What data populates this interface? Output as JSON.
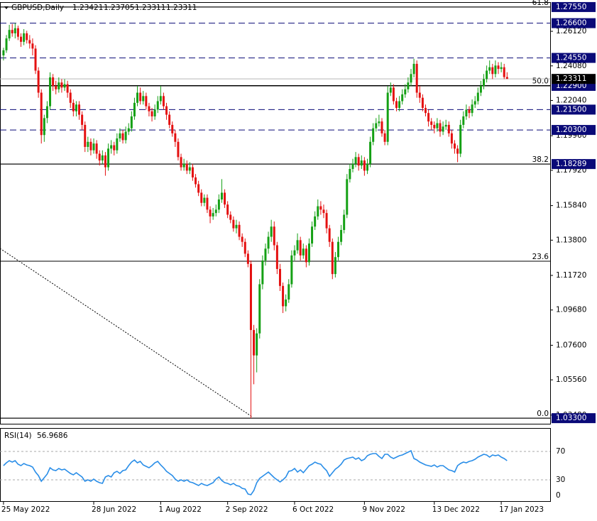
{
  "chart_data": {
    "type": "candlestick",
    "symbol": "GBPUSD,Daily",
    "bull_color": "#14a014",
    "bear_color": "#e41010",
    "xlim": [
      -1.2,
      187.8
    ],
    "xticks": [
      {
        "value": 0,
        "label": "25 May 2022"
      },
      {
        "value": 31,
        "label": "28 Jun 2022"
      },
      {
        "value": 54,
        "label": "1 Aug 2022"
      },
      {
        "value": 77,
        "label": "2 Sep 2022"
      },
      {
        "value": 100,
        "label": "6 Oct 2022"
      },
      {
        "value": 124,
        "label": "9 Nov 2022"
      },
      {
        "value": 148,
        "label": "13 Dec 2022"
      },
      {
        "value": 171,
        "label": "17 Jan 2023"
      }
    ],
    "ylim": [
      1.0297,
      1.2784
    ],
    "yticks": [
      {
        "value": 1.2612,
        "label": "1.26120"
      },
      {
        "value": 1.2408,
        "label": "1.24080"
      },
      {
        "value": 1.2204,
        "label": "1.22040"
      },
      {
        "value": 1.1996,
        "label": "1.19960"
      },
      {
        "value": 1.1792,
        "label": "1.17920"
      },
      {
        "value": 1.1584,
        "label": "1.15840"
      },
      {
        "value": 1.138,
        "label": "1.13800"
      },
      {
        "value": 1.1172,
        "label": "1.11720"
      },
      {
        "value": 1.0968,
        "label": "1.09680"
      },
      {
        "value": 1.076,
        "label": "1.07600"
      },
      {
        "value": 1.0556,
        "label": "1.05560"
      },
      {
        "value": 1.0348,
        "label": "1.03480"
      }
    ],
    "fib_levels": [
      {
        "value": 1.2755,
        "label": "61.8"
      },
      {
        "value": 1.2292,
        "label": "50.0"
      },
      {
        "value": 1.1829,
        "label": "38.2"
      },
      {
        "value": 1.1256,
        "label": "23.6"
      },
      {
        "value": 1.033,
        "label": "0.0"
      }
    ],
    "level_color": "#0a0a78",
    "levels": [
      {
        "value": 1.2755,
        "label": "1.27550",
        "style": "solid"
      },
      {
        "value": 1.266,
        "label": "1.26600",
        "style": "dashed"
      },
      {
        "value": 1.2455,
        "label": "1.24550",
        "style": "dashed"
      },
      {
        "value": 1.229,
        "label": "1.22900",
        "style": "solid"
      },
      {
        "value": 1.215,
        "label": "1.21500",
        "style": "dashed"
      },
      {
        "value": 1.203,
        "label": "1.20300",
        "style": "dashed"
      },
      {
        "value": 1.18289,
        "label": "1.18289",
        "style": "solid"
      },
      {
        "value": 1.033,
        "label": "1.03300",
        "style": "solid"
      }
    ],
    "last_price": {
      "value": 1.23311,
      "label": "1.23311"
    },
    "candles": [
      [
        1.247,
        1.2515,
        1.244,
        1.25
      ],
      [
        1.25,
        1.259,
        1.2485,
        1.257
      ],
      [
        1.257,
        1.265,
        1.2555,
        1.262
      ],
      [
        1.262,
        1.2655,
        1.258,
        1.26
      ],
      [
        1.26,
        1.266,
        1.257,
        1.263
      ],
      [
        1.263,
        1.2645,
        1.256,
        1.258
      ],
      [
        1.258,
        1.26,
        1.252,
        1.255
      ],
      [
        1.255,
        1.2625,
        1.253,
        1.26
      ],
      [
        1.26,
        1.2615,
        1.254,
        1.256
      ],
      [
        1.256,
        1.259,
        1.251,
        1.254
      ],
      [
        1.254,
        1.257,
        1.247,
        1.251
      ],
      [
        1.251,
        1.253,
        1.236,
        1.238
      ],
      [
        1.238,
        1.24,
        1.222,
        1.225
      ],
      [
        1.225,
        1.227,
        1.195,
        1.2
      ],
      [
        1.2,
        1.212,
        1.196,
        1.21
      ],
      [
        1.21,
        1.22,
        1.207,
        1.217
      ],
      [
        1.217,
        1.237,
        1.215,
        1.234
      ],
      [
        1.234,
        1.236,
        1.226,
        1.229
      ],
      [
        1.229,
        1.232,
        1.224,
        1.227
      ],
      [
        1.227,
        1.234,
        1.225,
        1.231
      ],
      [
        1.231,
        1.233,
        1.225,
        1.228
      ],
      [
        1.228,
        1.233,
        1.226,
        1.23
      ],
      [
        1.23,
        1.232,
        1.222,
        1.225
      ],
      [
        1.225,
        1.227,
        1.216,
        1.219
      ],
      [
        1.219,
        1.221,
        1.211,
        1.214
      ],
      [
        1.214,
        1.22,
        1.211,
        1.218
      ],
      [
        1.218,
        1.22,
        1.209,
        1.212
      ],
      [
        1.212,
        1.214,
        1.203,
        1.206
      ],
      [
        1.206,
        1.208,
        1.19,
        1.193
      ],
      [
        1.193,
        1.199,
        1.19,
        1.196
      ],
      [
        1.196,
        1.198,
        1.188,
        1.191
      ],
      [
        1.191,
        1.198,
        1.189,
        1.195
      ],
      [
        1.195,
        1.197,
        1.186,
        1.189
      ],
      [
        1.189,
        1.191,
        1.182,
        1.185
      ],
      [
        1.185,
        1.191,
        1.183,
        1.188
      ],
      [
        1.188,
        1.19,
        1.176,
        1.181
      ],
      [
        1.181,
        1.195,
        1.179,
        1.192
      ],
      [
        1.192,
        1.197,
        1.189,
        1.194
      ],
      [
        1.194,
        1.196,
        1.188,
        1.191
      ],
      [
        1.191,
        1.201,
        1.189,
        1.198
      ],
      [
        1.198,
        1.204,
        1.196,
        1.201
      ],
      [
        1.201,
        1.203,
        1.195,
        1.197
      ],
      [
        1.197,
        1.205,
        1.195,
        1.202
      ],
      [
        1.202,
        1.207,
        1.2,
        1.204
      ],
      [
        1.204,
        1.214,
        1.202,
        1.211
      ],
      [
        1.211,
        1.222,
        1.209,
        1.219
      ],
      [
        1.219,
        1.229,
        1.217,
        1.225
      ],
      [
        1.225,
        1.228,
        1.218,
        1.22
      ],
      [
        1.22,
        1.226,
        1.218,
        1.223
      ],
      [
        1.223,
        1.225,
        1.215,
        1.217
      ],
      [
        1.217,
        1.219,
        1.211,
        1.214
      ],
      [
        1.214,
        1.216,
        1.208,
        1.211
      ],
      [
        1.211,
        1.218,
        1.209,
        1.215
      ],
      [
        1.215,
        1.223,
        1.213,
        1.22
      ],
      [
        1.22,
        1.229,
        1.218,
        1.223
      ],
      [
        1.223,
        1.225,
        1.215,
        1.217
      ],
      [
        1.217,
        1.219,
        1.209,
        1.212
      ],
      [
        1.212,
        1.214,
        1.204,
        1.206
      ],
      [
        1.206,
        1.208,
        1.199,
        1.201
      ],
      [
        1.201,
        1.203,
        1.193,
        1.196
      ],
      [
        1.196,
        1.198,
        1.185,
        1.187
      ],
      [
        1.187,
        1.189,
        1.179,
        1.181
      ],
      [
        1.181,
        1.186,
        1.179,
        1.183
      ],
      [
        1.183,
        1.185,
        1.177,
        1.179
      ],
      [
        1.179,
        1.184,
        1.177,
        1.181
      ],
      [
        1.181,
        1.183,
        1.173,
        1.175
      ],
      [
        1.175,
        1.177,
        1.169,
        1.171
      ],
      [
        1.171,
        1.173,
        1.164,
        1.166
      ],
      [
        1.166,
        1.168,
        1.158,
        1.16
      ],
      [
        1.16,
        1.165,
        1.158,
        1.163
      ],
      [
        1.163,
        1.165,
        1.154,
        1.156
      ],
      [
        1.156,
        1.158,
        1.148,
        1.152
      ],
      [
        1.152,
        1.157,
        1.15,
        1.154
      ],
      [
        1.154,
        1.159,
        1.152,
        1.156
      ],
      [
        1.156,
        1.165,
        1.154,
        1.162
      ],
      [
        1.162,
        1.174,
        1.16,
        1.166
      ],
      [
        1.166,
        1.168,
        1.157,
        1.159
      ],
      [
        1.159,
        1.161,
        1.151,
        1.153
      ],
      [
        1.153,
        1.155,
        1.148,
        1.15
      ],
      [
        1.15,
        1.152,
        1.143,
        1.145
      ],
      [
        1.145,
        1.15,
        1.142,
        1.147
      ],
      [
        1.147,
        1.149,
        1.138,
        1.14
      ],
      [
        1.14,
        1.142,
        1.134,
        1.137
      ],
      [
        1.137,
        1.139,
        1.128,
        1.13
      ],
      [
        1.13,
        1.132,
        1.122,
        1.124
      ],
      [
        1.124,
        1.126,
        1.033,
        1.085
      ],
      [
        1.085,
        1.088,
        1.053,
        1.07
      ],
      [
        1.07,
        1.086,
        1.06,
        1.083
      ],
      [
        1.083,
        1.115,
        1.08,
        1.112
      ],
      [
        1.112,
        1.129,
        1.109,
        1.126
      ],
      [
        1.126,
        1.136,
        1.123,
        1.133
      ],
      [
        1.133,
        1.143,
        1.13,
        1.14
      ],
      [
        1.14,
        1.15,
        1.137,
        1.146
      ],
      [
        1.146,
        1.149,
        1.132,
        1.135
      ],
      [
        1.135,
        1.137,
        1.118,
        1.121
      ],
      [
        1.121,
        1.124,
        1.108,
        1.111
      ],
      [
        1.111,
        1.113,
        1.095,
        1.099
      ],
      [
        1.099,
        1.106,
        1.096,
        1.103
      ],
      [
        1.103,
        1.115,
        1.101,
        1.112
      ],
      [
        1.112,
        1.132,
        1.11,
        1.129
      ],
      [
        1.129,
        1.135,
        1.126,
        1.132
      ],
      [
        1.132,
        1.142,
        1.13,
        1.138
      ],
      [
        1.138,
        1.14,
        1.126,
        1.129
      ],
      [
        1.129,
        1.136,
        1.127,
        1.133
      ],
      [
        1.133,
        1.135,
        1.122,
        1.125
      ],
      [
        1.125,
        1.139,
        1.123,
        1.136
      ],
      [
        1.136,
        1.149,
        1.134,
        1.146
      ],
      [
        1.146,
        1.155,
        1.144,
        1.152
      ],
      [
        1.152,
        1.162,
        1.15,
        1.158
      ],
      [
        1.158,
        1.161,
        1.153,
        1.156
      ],
      [
        1.156,
        1.159,
        1.151,
        1.154
      ],
      [
        1.154,
        1.156,
        1.142,
        1.145
      ],
      [
        1.145,
        1.147,
        1.134,
        1.137
      ],
      [
        1.137,
        1.139,
        1.115,
        1.118
      ],
      [
        1.118,
        1.131,
        1.116,
        1.128
      ],
      [
        1.128,
        1.14,
        1.126,
        1.137
      ],
      [
        1.137,
        1.147,
        1.135,
        1.144
      ],
      [
        1.144,
        1.156,
        1.142,
        1.153
      ],
      [
        1.153,
        1.177,
        1.151,
        1.174
      ],
      [
        1.174,
        1.183,
        1.172,
        1.18
      ],
      [
        1.18,
        1.186,
        1.178,
        1.183
      ],
      [
        1.183,
        1.19,
        1.181,
        1.187
      ],
      [
        1.187,
        1.189,
        1.179,
        1.182
      ],
      [
        1.182,
        1.188,
        1.18,
        1.185
      ],
      [
        1.185,
        1.187,
        1.176,
        1.179
      ],
      [
        1.179,
        1.186,
        1.177,
        1.183
      ],
      [
        1.183,
        1.199,
        1.181,
        1.196
      ],
      [
        1.196,
        1.207,
        1.194,
        1.204
      ],
      [
        1.204,
        1.21,
        1.202,
        1.207
      ],
      [
        1.207,
        1.212,
        1.205,
        1.208
      ],
      [
        1.208,
        1.21,
        1.199,
        1.201
      ],
      [
        1.201,
        1.203,
        1.194,
        1.196
      ],
      [
        1.196,
        1.229,
        1.194,
        1.225
      ],
      [
        1.225,
        1.231,
        1.223,
        1.228
      ],
      [
        1.228,
        1.23,
        1.218,
        1.22
      ],
      [
        1.22,
        1.222,
        1.214,
        1.216
      ],
      [
        1.216,
        1.223,
        1.214,
        1.22
      ],
      [
        1.22,
        1.227,
        1.218,
        1.224
      ],
      [
        1.224,
        1.23,
        1.222,
        1.227
      ],
      [
        1.227,
        1.234,
        1.225,
        1.231
      ],
      [
        1.231,
        1.239,
        1.229,
        1.236
      ],
      [
        1.236,
        1.245,
        1.234,
        1.242
      ],
      [
        1.242,
        1.244,
        1.222,
        1.225
      ],
      [
        1.225,
        1.229,
        1.219,
        1.222
      ],
      [
        1.222,
        1.224,
        1.214,
        1.216
      ],
      [
        1.216,
        1.218,
        1.211,
        1.213
      ],
      [
        1.213,
        1.215,
        1.205,
        1.208
      ],
      [
        1.208,
        1.21,
        1.203,
        1.206
      ],
      [
        1.206,
        1.208,
        1.201,
        1.204
      ],
      [
        1.204,
        1.21,
        1.202,
        1.207
      ],
      [
        1.207,
        1.209,
        1.199,
        1.202
      ],
      [
        1.202,
        1.208,
        1.2,
        1.205
      ],
      [
        1.205,
        1.209,
        1.203,
        1.206
      ],
      [
        1.206,
        1.208,
        1.199,
        1.201
      ],
      [
        1.201,
        1.203,
        1.192,
        1.195
      ],
      [
        1.195,
        1.197,
        1.189,
        1.192
      ],
      [
        1.192,
        1.194,
        1.184,
        1.189
      ],
      [
        1.189,
        1.209,
        1.187,
        1.206
      ],
      [
        1.206,
        1.214,
        1.204,
        1.211
      ],
      [
        1.211,
        1.218,
        1.209,
        1.215
      ],
      [
        1.215,
        1.217,
        1.21,
        1.213
      ],
      [
        1.213,
        1.221,
        1.211,
        1.218
      ],
      [
        1.218,
        1.223,
        1.216,
        1.22
      ],
      [
        1.22,
        1.228,
        1.218,
        1.225
      ],
      [
        1.225,
        1.232,
        1.223,
        1.229
      ],
      [
        1.229,
        1.236,
        1.227,
        1.233
      ],
      [
        1.233,
        1.241,
        1.231,
        1.238
      ],
      [
        1.238,
        1.244,
        1.236,
        1.24
      ],
      [
        1.24,
        1.242,
        1.233,
        1.236
      ],
      [
        1.236,
        1.244,
        1.234,
        1.241
      ],
      [
        1.241,
        1.243,
        1.236,
        1.239
      ],
      [
        1.239,
        1.243,
        1.237,
        1.24
      ],
      [
        1.24,
        1.242,
        1.233,
        1.2342
      ],
      [
        1.23421,
        1.23705,
        1.23311,
        1.23311
      ]
    ],
    "rsi": {
      "name": "RSI(14)",
      "color": "#2a8ee8",
      "ylim": [
        0,
        100
      ],
      "yticks": [
        70,
        30,
        0
      ],
      "values": [
        50,
        54,
        57,
        55,
        57,
        52,
        50,
        53,
        51,
        50,
        48,
        41,
        36,
        28,
        33,
        38,
        47,
        44,
        43,
        46,
        44,
        45,
        42,
        39,
        37,
        40,
        37,
        34,
        28,
        30,
        28,
        31,
        28,
        26,
        25,
        34,
        36,
        34,
        40,
        42,
        39,
        43,
        44,
        50,
        55,
        58,
        54,
        56,
        51,
        49,
        47,
        50,
        54,
        56,
        51,
        47,
        42,
        39,
        36,
        31,
        28,
        30,
        28,
        30,
        27,
        26,
        24,
        22,
        25,
        23,
        22,
        24,
        26,
        31,
        34,
        29,
        26,
        25,
        23,
        25,
        22,
        21,
        18,
        17,
        10,
        9,
        15,
        26,
        32,
        35,
        38,
        41,
        37,
        33,
        30,
        27,
        30,
        34,
        42,
        43,
        46,
        41,
        44,
        40,
        45,
        50,
        52,
        55,
        53,
        52,
        47,
        43,
        35,
        40,
        45,
        48,
        52,
        58,
        60,
        61,
        62,
        59,
        61,
        57,
        59,
        64,
        66,
        67,
        67,
        63,
        60,
        66,
        66,
        62,
        60,
        62,
        64,
        65,
        67,
        69,
        71,
        60,
        58,
        55,
        53,
        51,
        50,
        49,
        51,
        48,
        50,
        50,
        47,
        44,
        43,
        41,
        50,
        53,
        55,
        54,
        56,
        57,
        59,
        62,
        64,
        66,
        65,
        62,
        65,
        64,
        65,
        62,
        60,
        56.9686
      ]
    }
  }
}
